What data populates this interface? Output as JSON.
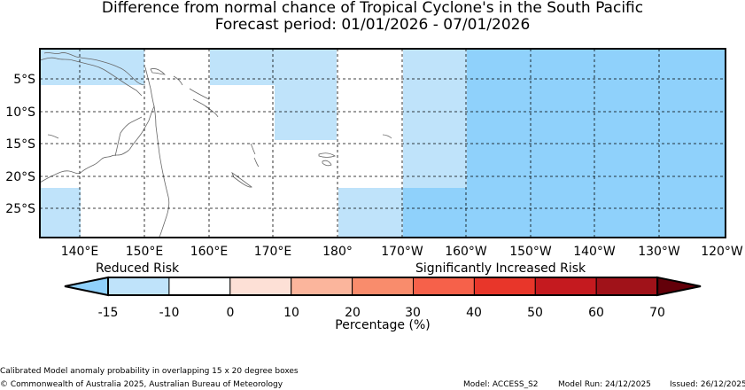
{
  "title": "Difference from normal chance of Tropical Cyclone's in the South Pacific",
  "subtitle": "Forecast period: 01/01/2026 - 07/01/2026",
  "map": {
    "lon_ticks": [
      "140°E",
      "150°E",
      "160°E",
      "170°E",
      "180°",
      "170°W",
      "160°W",
      "150°W",
      "140°W",
      "130°W",
      "120°W"
    ],
    "lat_ticks": [
      "5°S",
      "10°S",
      "15°S",
      "20°S",
      "25°S"
    ],
    "colors": {
      "light_blue": "#bfe3fa",
      "medium_blue": "#8fd1fb"
    }
  },
  "colorbar": {
    "reduced_label": "Reduced Risk",
    "increased_label": "Significantly Increased Risk",
    "tick_labels": [
      "-15",
      "-10",
      "0",
      "10",
      "20",
      "30",
      "40",
      "50",
      "60",
      "70"
    ],
    "segment_colors": [
      "#bfe3fa",
      "#ffffff",
      "#fde0d6",
      "#fbb59c",
      "#f98c6c",
      "#f6614a",
      "#e8362a",
      "#c51a1f",
      "#a01219"
    ],
    "under_color": "#8fd1fb",
    "over_color": "#630009",
    "label": "Percentage (%)"
  },
  "footer": {
    "note": "Calibrated Model anomaly probability in overlapping 15 x 20 degree boxes",
    "copyright": "© Commonwealth of Australia 2025, Australian Bureau of Meteorology",
    "model": "Model: ACCESS_S2",
    "model_run": "Model Run: 24/12/2025",
    "issued": "Issued: 26/12/2025"
  }
}
